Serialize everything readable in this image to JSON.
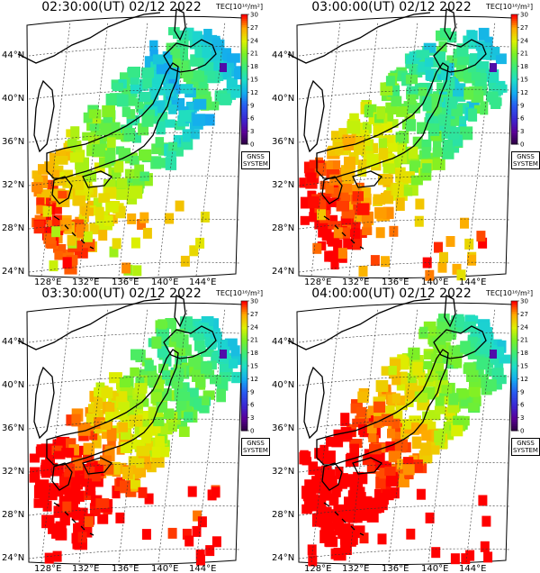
{
  "panels": [
    {
      "title": "02:30:00(UT) 02/12 2022",
      "stage": 0
    },
    {
      "title": "03:00:00(UT) 02/12 2022",
      "stage": 1
    },
    {
      "title": "03:30:00(UT) 02/12 2022",
      "stage": 2
    },
    {
      "title": "04:00:00(UT) 02/12 2022",
      "stage": 3
    }
  ],
  "colorbar": {
    "label": "TEC[10¹⁶/m²]",
    "ticks": [
      "30",
      "27",
      "24",
      "21",
      "18",
      "15",
      "12",
      "9",
      "6",
      "3",
      "0"
    ]
  },
  "badge": {
    "line1": "GNSS",
    "line2": "SYSTEM"
  },
  "lat_labels": [
    "44°N",
    "40°N",
    "36°N",
    "32°N",
    "28°N",
    "24°N"
  ],
  "lon_labels": [
    "128°E",
    "132°E",
    "136°E",
    "140°E",
    "144°E"
  ],
  "colors": {
    "high": "#ff0000",
    "mid": "#ffdd00",
    "low": "#33dd33",
    "min": "#0000cc"
  }
}
